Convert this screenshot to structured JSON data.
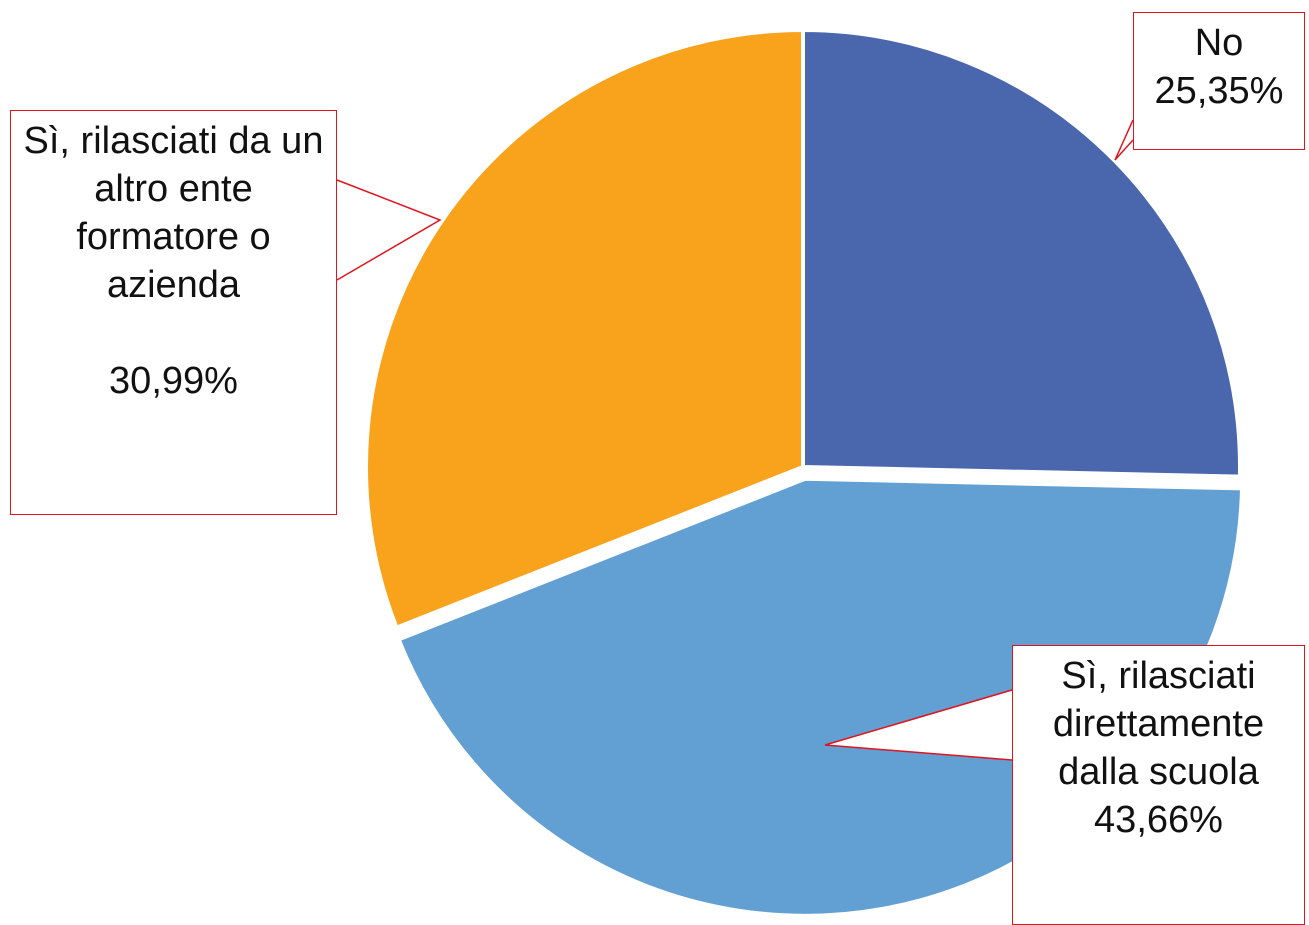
{
  "chart_data": {
    "type": "pie",
    "categories": [
      "No",
      "Sì, rilasciati direttamente dalla scuola",
      "Sì, rilasciati da un altro ente formatore o azienda"
    ],
    "values": [
      25.35,
      43.66,
      30.99
    ],
    "value_labels": [
      "25,35%",
      "43,66%",
      "30,99%"
    ],
    "colors": [
      "#4a67ad",
      "#629fd2",
      "#f9a21b"
    ]
  }
}
